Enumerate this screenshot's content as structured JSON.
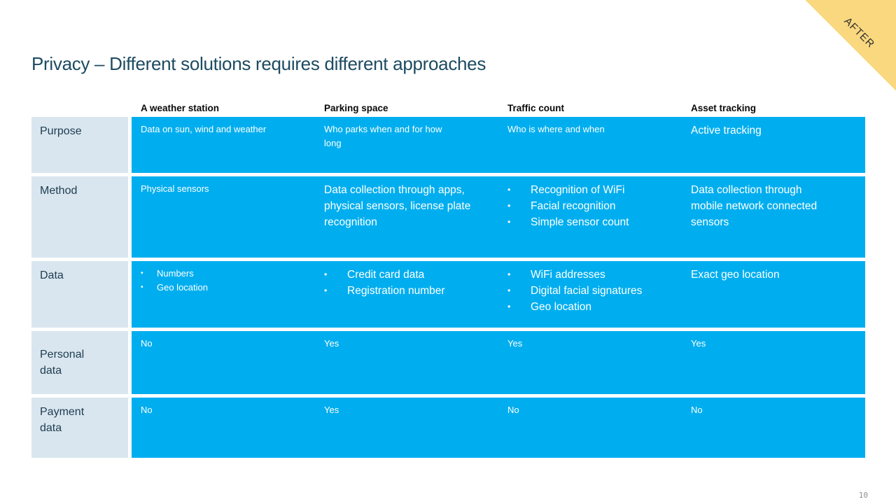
{
  "slide": {
    "title": "Privacy – Different solutions requires different approaches",
    "ribbon_label": "AFTER",
    "page_number": "10"
  },
  "meta": {
    "bullet": "•",
    "colors": {
      "cell_blue": "#00aeef",
      "row_label_blue": "#d9e6ef",
      "title_navy": "#1d4b61",
      "ribbon_yellow": "#fad87f"
    }
  },
  "table": {
    "columns": [
      "A weather station",
      "Parking space",
      "Traffic count",
      "Asset tracking"
    ],
    "rows": [
      {
        "label": "Purpose",
        "cells": [
          {
            "type": "text",
            "size": "sm",
            "text": "Data on sun, wind and weather"
          },
          {
            "type": "text",
            "size": "sm",
            "text": "Who parks when and for how long"
          },
          {
            "type": "text",
            "size": "sm",
            "text": "Who is where and when"
          },
          {
            "type": "text",
            "size": "lg",
            "text": "Active tracking"
          }
        ]
      },
      {
        "label": "Method",
        "cells": [
          {
            "type": "text",
            "size": "sm",
            "text": "Physical sensors"
          },
          {
            "type": "text",
            "size": "lg",
            "text": "Data collection through apps, physical sensors, license plate recognition"
          },
          {
            "type": "bullets",
            "size": "lg",
            "items": [
              "Recognition of WiFi",
              "Facial recognition",
              "Simple sensor count"
            ]
          },
          {
            "type": "text",
            "size": "lg",
            "text": "Data collection through mobile network connected sensors"
          }
        ]
      },
      {
        "label": "Data",
        "cells": [
          {
            "type": "bullets",
            "size": "sm",
            "items": [
              "Numbers",
              "Geo location"
            ]
          },
          {
            "type": "bullets",
            "size": "lg",
            "items": [
              "Credit card data",
              "Registration number"
            ]
          },
          {
            "type": "bullets",
            "size": "lg",
            "items": [
              "WiFi addresses",
              "Digital facial signatures",
              "Geo location"
            ]
          },
          {
            "type": "text",
            "size": "lg",
            "text": "Exact geo location"
          }
        ]
      },
      {
        "label": "Personal data",
        "cells": [
          {
            "type": "text",
            "size": "sm",
            "text": "No"
          },
          {
            "type": "text",
            "size": "sm",
            "text": "Yes"
          },
          {
            "type": "text",
            "size": "sm",
            "text": "Yes"
          },
          {
            "type": "text",
            "size": "sm",
            "text": "Yes"
          }
        ]
      },
      {
        "label": "Payment data",
        "cells": [
          {
            "type": "text",
            "size": "sm",
            "text": "No"
          },
          {
            "type": "text",
            "size": "sm",
            "text": "Yes"
          },
          {
            "type": "text",
            "size": "sm",
            "text": "No"
          },
          {
            "type": "text",
            "size": "sm",
            "text": "No"
          }
        ]
      }
    ]
  }
}
